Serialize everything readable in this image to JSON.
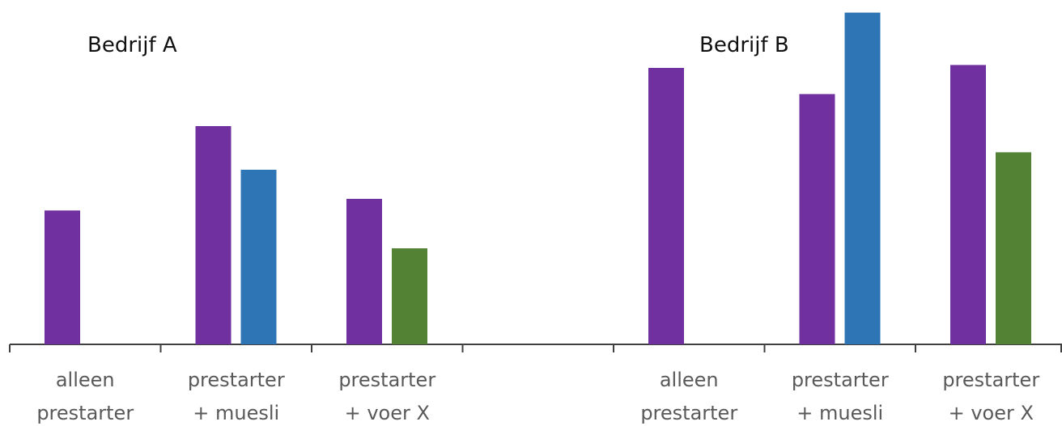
{
  "chart_data": {
    "type": "bar",
    "grid": false,
    "legend": "none",
    "ylim": [
      0,
      100
    ],
    "colors": {
      "purple": "#7030a0",
      "blue": "#2e75b6",
      "green": "#548235",
      "axis": "#404040"
    },
    "panels": [
      {
        "title": "Bedrijf A",
        "categories": [
          {
            "lines": [
              "alleen",
              "prestarter"
            ],
            "bars": [
              {
                "value": 46,
                "color": "#7030a0"
              }
            ]
          },
          {
            "lines": [
              "prestarter",
              "+ muesli"
            ],
            "bars": [
              {
                "value": 75,
                "color": "#7030a0"
              },
              {
                "value": 60,
                "color": "#2e75b6"
              }
            ]
          },
          {
            "lines": [
              "prestarter",
              "+ voer X"
            ],
            "bars": [
              {
                "value": 50,
                "color": "#7030a0"
              },
              {
                "value": 33,
                "color": "#548235"
              }
            ]
          }
        ]
      },
      {
        "title": "Bedrijf B",
        "categories": [
          {
            "lines": [
              "alleen",
              "prestarter"
            ],
            "bars": [
              {
                "value": 95,
                "color": "#7030a0"
              }
            ]
          },
          {
            "lines": [
              "prestarter",
              "+ muesli"
            ],
            "bars": [
              {
                "value": 86,
                "color": "#7030a0"
              },
              {
                "value": 114,
                "color": "#2e75b6"
              }
            ]
          },
          {
            "lines": [
              "prestarter",
              "+ voer X"
            ],
            "bars": [
              {
                "value": 96,
                "color": "#7030a0"
              },
              {
                "value": 66,
                "color": "#548235"
              }
            ]
          }
        ]
      }
    ]
  }
}
